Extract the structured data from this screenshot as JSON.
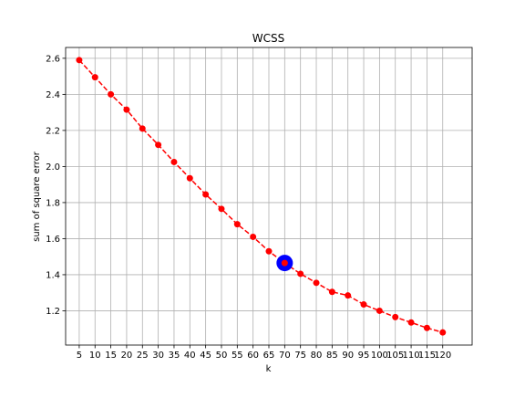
{
  "chart_data": {
    "type": "line",
    "title": "WCSS",
    "xlabel": "k",
    "ylabel": "sum of square error",
    "grid": true,
    "xlim": [
      -0.86,
      24.86
    ],
    "ylim": [
      1.01,
      2.66
    ],
    "x_ticks": [
      "5",
      "10",
      "15",
      "20",
      "25",
      "30",
      "35",
      "40",
      "45",
      "50",
      "55",
      "60",
      "65",
      "70",
      "75",
      "80",
      "85",
      "90",
      "95",
      "100",
      "105",
      "110",
      "115",
      "120"
    ],
    "y_ticks": [
      1.2,
      1.4,
      1.6,
      1.8,
      2.0,
      2.2,
      2.4,
      2.6
    ],
    "series": [
      {
        "color": "#ff0000",
        "line_style": "dashed",
        "marker": "circle",
        "values": [
          2.59,
          2.495,
          2.4,
          2.315,
          2.21,
          2.12,
          2.025,
          1.935,
          1.845,
          1.765,
          1.68,
          1.61,
          1.53,
          1.465,
          1.405,
          1.355,
          1.305,
          1.285,
          1.235,
          1.2,
          1.165,
          1.135,
          1.105,
          1.08
        ]
      }
    ],
    "highlight": {
      "category": "70",
      "value": 1.465,
      "color": "#0000ff"
    }
  }
}
